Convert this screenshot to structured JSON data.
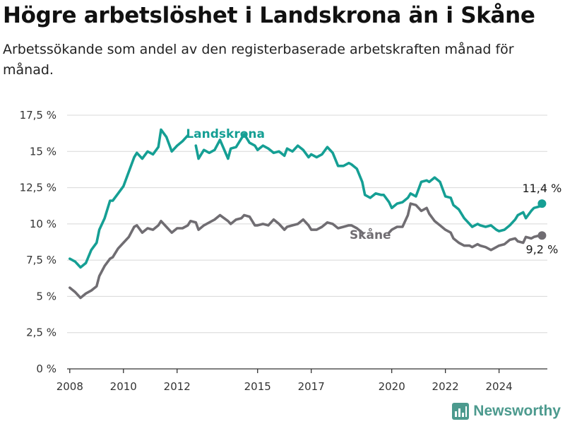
{
  "title": "Högre arbetslöshet i Landskrona än i Skåne",
  "subtitle": "Arbetssökande som andel av den registerbaserade arbetskraften månad för månad.",
  "brand": {
    "name": "Newsworthy",
    "icon": "bar-chart-icon"
  },
  "colors": {
    "landskrona": "#159f94",
    "skane": "#706d72",
    "grid": "#d8d8d8",
    "axis": "#333333"
  },
  "chart_data": {
    "type": "line",
    "title": "Högre arbetslöshet i Landskrona än i Skåne",
    "subtitle": "Arbetssökande som andel av den registerbaserade arbetskraften månad för månad.",
    "xlabel": "",
    "ylabel": "",
    "ylim": [
      0,
      17.5
    ],
    "yticks": [
      0,
      2.5,
      5,
      7.5,
      10,
      12.5,
      15,
      17.5
    ],
    "ytick_labels": [
      "0 %",
      "2,5 %",
      "5 %",
      "7,5 %",
      "10 %",
      "12,5 %",
      "15 %",
      "17,5 %"
    ],
    "xlim": [
      2007.9,
      2025.8
    ],
    "xticks": [
      2008,
      2010,
      2012,
      2015,
      2017,
      2020,
      2022,
      2024
    ],
    "xtick_labels": [
      "2008",
      "2010",
      "2012",
      "2015",
      "2017",
      "2020",
      "2022",
      "2024"
    ],
    "grid": true,
    "legend": "inline",
    "end_labels": {
      "landskrona": "11,4 %",
      "skane": "9,2 %"
    },
    "series": [
      {
        "key": "landskrona",
        "name": "Landskrona",
        "points": [
          [
            2008.0,
            7.6
          ],
          [
            2008.2,
            7.4
          ],
          [
            2008.4,
            7.0
          ],
          [
            2008.6,
            7.3
          ],
          [
            2008.8,
            8.2
          ],
          [
            2009.0,
            8.7
          ],
          [
            2009.1,
            9.6
          ],
          [
            2009.3,
            10.4
          ],
          [
            2009.5,
            11.6
          ],
          [
            2009.6,
            11.6
          ],
          [
            2009.8,
            12.1
          ],
          [
            2010.0,
            12.6
          ],
          [
            2010.2,
            13.6
          ],
          [
            2010.4,
            14.6
          ],
          [
            2010.5,
            14.9
          ],
          [
            2010.7,
            14.5
          ],
          [
            2010.9,
            15.0
          ],
          [
            2011.1,
            14.8
          ],
          [
            2011.3,
            15.3
          ],
          [
            2011.4,
            16.5
          ],
          [
            2011.6,
            16.0
          ],
          [
            2011.8,
            15.0
          ],
          [
            2012.0,
            15.4
          ],
          [
            2012.2,
            15.7
          ],
          [
            2012.4,
            16.1
          ],
          [
            2012.5,
            null
          ],
          [
            2012.7,
            15.4
          ],
          [
            2012.8,
            14.5
          ],
          [
            2013.0,
            15.1
          ],
          [
            2013.2,
            14.9
          ],
          [
            2013.4,
            15.1
          ],
          [
            2013.6,
            15.8
          ],
          [
            2013.9,
            14.5
          ],
          [
            2014.0,
            15.2
          ],
          [
            2014.2,
            15.3
          ],
          [
            2014.4,
            15.9
          ],
          [
            2014.5,
            16.2
          ],
          [
            2014.7,
            15.6
          ],
          [
            2014.9,
            15.4
          ],
          [
            2015.0,
            15.1
          ],
          [
            2015.2,
            15.4
          ],
          [
            2015.4,
            15.2
          ],
          [
            2015.6,
            14.9
          ],
          [
            2015.8,
            15.0
          ],
          [
            2016.0,
            14.7
          ],
          [
            2016.1,
            15.2
          ],
          [
            2016.3,
            15.0
          ],
          [
            2016.5,
            15.4
          ],
          [
            2016.7,
            15.1
          ],
          [
            2016.9,
            14.6
          ],
          [
            2017.0,
            14.8
          ],
          [
            2017.2,
            14.6
          ],
          [
            2017.4,
            14.8
          ],
          [
            2017.6,
            15.3
          ],
          [
            2017.8,
            14.9
          ],
          [
            2018.0,
            14.0
          ],
          [
            2018.2,
            14.0
          ],
          [
            2018.4,
            14.2
          ],
          [
            2018.5,
            14.1
          ],
          [
            2018.7,
            13.8
          ],
          [
            2018.9,
            12.9
          ],
          [
            2019.0,
            12.0
          ],
          [
            2019.2,
            11.8
          ],
          [
            2019.4,
            12.1
          ],
          [
            2019.6,
            12.0
          ],
          [
            2019.7,
            12.0
          ],
          [
            2019.9,
            11.5
          ],
          [
            2020.0,
            11.1
          ],
          [
            2020.2,
            11.4
          ],
          [
            2020.4,
            11.5
          ],
          [
            2020.6,
            11.8
          ],
          [
            2020.7,
            12.1
          ],
          [
            2020.9,
            11.9
          ],
          [
            2021.1,
            12.9
          ],
          [
            2021.3,
            13.0
          ],
          [
            2021.4,
            12.9
          ],
          [
            2021.6,
            13.2
          ],
          [
            2021.8,
            12.9
          ],
          [
            2022.0,
            11.9
          ],
          [
            2022.2,
            11.8
          ],
          [
            2022.3,
            11.3
          ],
          [
            2022.5,
            11.0
          ],
          [
            2022.7,
            10.4
          ],
          [
            2022.9,
            10.0
          ],
          [
            2023.0,
            9.8
          ],
          [
            2023.2,
            10.0
          ],
          [
            2023.3,
            9.9
          ],
          [
            2023.5,
            9.8
          ],
          [
            2023.7,
            9.9
          ],
          [
            2023.9,
            9.6
          ],
          [
            2024.0,
            9.5
          ],
          [
            2024.2,
            9.6
          ],
          [
            2024.4,
            9.9
          ],
          [
            2024.6,
            10.3
          ],
          [
            2024.7,
            10.6
          ],
          [
            2024.9,
            10.8
          ],
          [
            2025.0,
            10.4
          ],
          [
            2025.2,
            10.9
          ],
          [
            2025.3,
            11.1
          ],
          [
            2025.5,
            11.2
          ],
          [
            2025.6,
            11.4
          ]
        ]
      },
      {
        "key": "skane",
        "name": "Skåne",
        "points": [
          [
            2008.0,
            5.6
          ],
          [
            2008.2,
            5.3
          ],
          [
            2008.4,
            4.9
          ],
          [
            2008.6,
            5.2
          ],
          [
            2008.8,
            5.4
          ],
          [
            2009.0,
            5.7
          ],
          [
            2009.1,
            6.4
          ],
          [
            2009.3,
            7.1
          ],
          [
            2009.5,
            7.6
          ],
          [
            2009.6,
            7.7
          ],
          [
            2009.8,
            8.3
          ],
          [
            2010.0,
            8.7
          ],
          [
            2010.2,
            9.1
          ],
          [
            2010.4,
            9.8
          ],
          [
            2010.5,
            9.9
          ],
          [
            2010.7,
            9.4
          ],
          [
            2010.9,
            9.7
          ],
          [
            2011.1,
            9.6
          ],
          [
            2011.3,
            9.9
          ],
          [
            2011.4,
            10.2
          ],
          [
            2011.6,
            9.8
          ],
          [
            2011.8,
            9.4
          ],
          [
            2012.0,
            9.7
          ],
          [
            2012.2,
            9.7
          ],
          [
            2012.4,
            9.9
          ],
          [
            2012.5,
            10.2
          ],
          [
            2012.7,
            10.1
          ],
          [
            2012.8,
            9.6
          ],
          [
            2013.0,
            9.9
          ],
          [
            2013.2,
            10.1
          ],
          [
            2013.4,
            10.3
          ],
          [
            2013.6,
            10.6
          ],
          [
            2013.9,
            10.2
          ],
          [
            2014.0,
            10.0
          ],
          [
            2014.2,
            10.3
          ],
          [
            2014.4,
            10.4
          ],
          [
            2014.5,
            10.6
          ],
          [
            2014.7,
            10.5
          ],
          [
            2014.9,
            9.9
          ],
          [
            2015.0,
            9.9
          ],
          [
            2015.2,
            10.0
          ],
          [
            2015.4,
            9.9
          ],
          [
            2015.6,
            10.3
          ],
          [
            2015.8,
            10.0
          ],
          [
            2016.0,
            9.6
          ],
          [
            2016.1,
            9.8
          ],
          [
            2016.3,
            9.9
          ],
          [
            2016.5,
            10.0
          ],
          [
            2016.7,
            10.3
          ],
          [
            2016.9,
            9.9
          ],
          [
            2017.0,
            9.6
          ],
          [
            2017.2,
            9.6
          ],
          [
            2017.4,
            9.8
          ],
          [
            2017.6,
            10.1
          ],
          [
            2017.8,
            10.0
          ],
          [
            2018.0,
            9.7
          ],
          [
            2018.2,
            9.8
          ],
          [
            2018.4,
            9.9
          ],
          [
            2018.5,
            9.9
          ],
          [
            2018.7,
            9.7
          ],
          [
            2018.9,
            9.4
          ],
          [
            2019.0,
            null
          ],
          [
            2019.2,
            null
          ],
          [
            2019.4,
            null
          ],
          [
            2019.6,
            null
          ],
          [
            2019.7,
            null
          ],
          [
            2019.9,
            9.4
          ],
          [
            2020.0,
            9.6
          ],
          [
            2020.2,
            9.8
          ],
          [
            2020.4,
            9.8
          ],
          [
            2020.6,
            10.6
          ],
          [
            2020.7,
            11.4
          ],
          [
            2020.9,
            11.3
          ],
          [
            2021.1,
            10.9
          ],
          [
            2021.3,
            11.1
          ],
          [
            2021.4,
            10.7
          ],
          [
            2021.6,
            10.2
          ],
          [
            2021.8,
            9.9
          ],
          [
            2022.0,
            9.6
          ],
          [
            2022.2,
            9.4
          ],
          [
            2022.3,
            9.0
          ],
          [
            2022.5,
            8.7
          ],
          [
            2022.7,
            8.5
          ],
          [
            2022.9,
            8.5
          ],
          [
            2023.0,
            8.4
          ],
          [
            2023.2,
            8.6
          ],
          [
            2023.3,
            8.5
          ],
          [
            2023.5,
            8.4
          ],
          [
            2023.7,
            8.2
          ],
          [
            2023.9,
            8.4
          ],
          [
            2024.0,
            8.5
          ],
          [
            2024.2,
            8.6
          ],
          [
            2024.4,
            8.9
          ],
          [
            2024.6,
            9.0
          ],
          [
            2024.7,
            8.8
          ],
          [
            2024.9,
            8.7
          ],
          [
            2025.0,
            9.1
          ],
          [
            2025.2,
            9.0
          ],
          [
            2025.3,
            9.1
          ],
          [
            2025.5,
            9.2
          ],
          [
            2025.6,
            9.2
          ]
        ]
      }
    ]
  }
}
